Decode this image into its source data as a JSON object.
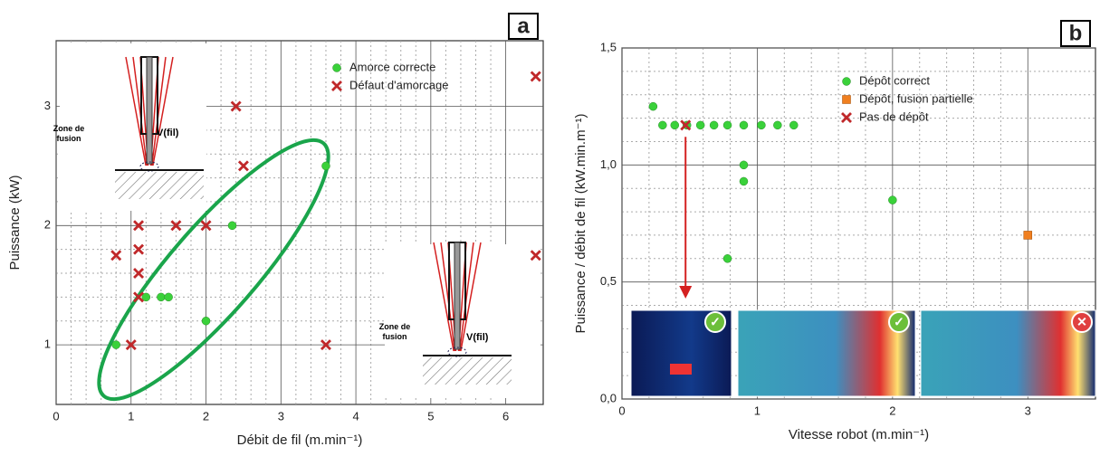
{
  "chart_data": [
    {
      "type": "scatter",
      "panel": "a",
      "x_label": "Débit de fil (m.min⁻¹)",
      "y_label": "Puissance (kW)",
      "xlim": [
        0,
        6.5
      ],
      "ylim": [
        0.5,
        3.55
      ],
      "xticks": [
        0,
        1,
        2,
        3,
        4,
        5,
        6
      ],
      "yticks": [
        1,
        2,
        3
      ],
      "grid": true,
      "annotations": [
        "Zone de fusion",
        "V(fil)",
        "Zone de fusion",
        "V(fil)"
      ],
      "series": [
        {
          "name": "Amorce correcte",
          "color": "#3ad13a",
          "marker": "circle",
          "x": [
            0.8,
            1.2,
            1.4,
            1.5,
            2.0,
            2.35,
            3.6
          ],
          "values": [
            1.0,
            1.4,
            1.4,
            1.4,
            1.2,
            2.0,
            2.5
          ]
        },
        {
          "name": "Défaut d'amorcage",
          "color": "#c0282a",
          "marker": "x",
          "x": [
            0.8,
            1.0,
            1.1,
            1.1,
            1.1,
            1.1,
            1.6,
            2.0,
            2.4,
            2.5,
            3.6,
            6.4,
            6.4
          ],
          "values": [
            1.75,
            1.0,
            1.4,
            1.6,
            1.8,
            2.0,
            2.0,
            2.0,
            3.0,
            2.5,
            1.0,
            3.25,
            1.75
          ]
        }
      ]
    },
    {
      "type": "scatter",
      "panel": "b",
      "x_label": "Vitesse robot (m.min⁻¹)",
      "y_label": "Puissance / débit de fil (kW.min.m⁻¹)",
      "xlim": [
        0,
        3.5
      ],
      "ylim": [
        0,
        1.5
      ],
      "xticks": [
        0,
        1,
        2,
        3
      ],
      "yticks": [
        {
          "value": 0,
          "label": "0,0"
        },
        {
          "value": 0.5,
          "label": "0,5"
        },
        {
          "value": 1.0,
          "label": "1,0"
        },
        {
          "value": 1.5,
          "label": "1,5"
        }
      ],
      "grid": true,
      "series": [
        {
          "name": "Dépôt correct",
          "color": "#3ad13a",
          "marker": "circle",
          "x": [
            0.23,
            0.3,
            0.39,
            0.48,
            0.58,
            0.68,
            0.78,
            0.9,
            1.03,
            1.15,
            1.27,
            0.9,
            0.9,
            0.78,
            2.0
          ],
          "values": [
            1.25,
            1.17,
            1.17,
            1.17,
            1.17,
            1.17,
            1.17,
            1.17,
            1.17,
            1.17,
            1.17,
            1.0,
            0.93,
            0.6,
            0.85
          ]
        },
        {
          "name": "Dépôt, fusion partielle",
          "color": "#f07f1f",
          "marker": "square",
          "x": [
            3.0
          ],
          "values": [
            0.7
          ]
        },
        {
          "name": "Pas de dépôt",
          "color": "#c0282a",
          "marker": "x",
          "x": [
            0.47
          ],
          "values": [
            1.17
          ]
        }
      ]
    }
  ]
}
